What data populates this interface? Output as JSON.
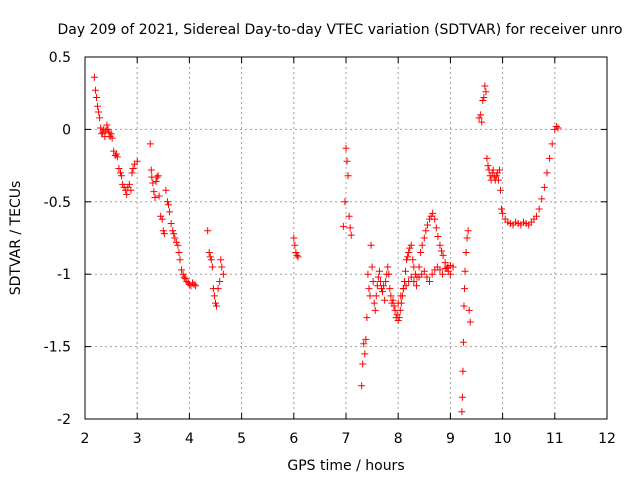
{
  "chart_data": {
    "type": "scatter",
    "title": "Day 209 of 2021, Sidereal Day-to-day VTEC variation (SDTVAR) for receiver unro",
    "xlabel": "GPS time / hours",
    "ylabel": "SDTVAR / TECUs",
    "xlim": [
      2,
      12
    ],
    "ylim": [
      -2,
      0.5
    ],
    "xticks": [
      2,
      3,
      4,
      5,
      6,
      7,
      8,
      9,
      10,
      11,
      12
    ],
    "yticks": [
      0.5,
      0,
      -0.5,
      -1,
      -1.5,
      -2
    ],
    "xtick_labels": [
      "2",
      "3",
      "4",
      "5",
      "6",
      "7",
      "8",
      "9",
      "10",
      "11",
      "12"
    ],
    "ytick_labels": [
      "0.5",
      "0",
      "-0.5",
      "-1",
      "-1.5",
      "-2"
    ],
    "grid": true,
    "marker": "plus",
    "color": "#ff0000",
    "series": [
      {
        "name": "SDTVAR",
        "x": [
          2.18,
          2.2,
          2.22,
          2.24,
          2.26,
          2.28,
          2.3,
          2.32,
          2.34,
          2.36,
          2.38,
          2.4,
          2.42,
          2.44,
          2.46,
          2.48,
          2.5,
          2.52,
          2.55,
          2.58,
          2.6,
          2.62,
          2.65,
          2.68,
          2.7,
          2.72,
          2.75,
          2.78,
          2.8,
          2.82,
          2.85,
          2.88,
          2.9,
          2.92,
          2.95,
          3.0,
          3.25,
          3.27,
          3.28,
          3.3,
          3.32,
          3.34,
          3.36,
          3.38,
          3.4,
          3.42,
          3.45,
          3.48,
          3.5,
          3.52,
          3.55,
          3.58,
          3.6,
          3.62,
          3.65,
          3.68,
          3.7,
          3.72,
          3.75,
          3.78,
          3.8,
          3.82,
          3.85,
          3.88,
          3.9,
          3.92,
          3.95,
          3.98,
          4.0,
          4.03,
          4.06,
          4.09,
          4.12,
          4.35,
          4.38,
          4.4,
          4.42,
          4.44,
          4.46,
          4.48,
          4.5,
          4.52,
          4.55,
          4.58,
          4.6,
          4.62,
          4.65,
          6.0,
          6.02,
          6.04,
          6.06,
          6.08,
          6.95,
          6.98,
          7.0,
          7.02,
          7.04,
          7.06,
          7.08,
          7.1,
          7.3,
          7.32,
          7.34,
          7.36,
          7.38,
          7.4,
          7.42,
          7.44,
          7.46,
          7.48,
          7.5,
          7.52,
          7.54,
          7.56,
          7.58,
          7.6,
          7.62,
          7.64,
          7.66,
          7.68,
          7.7,
          7.72,
          7.74,
          7.76,
          7.78,
          7.8,
          7.82,
          7.84,
          7.86,
          7.88,
          7.9,
          7.92,
          7.94,
          7.96,
          7.98,
          8.0,
          8.02,
          8.04,
          8.06,
          8.08,
          8.1,
          8.12,
          8.14,
          8.16,
          8.18,
          8.2,
          8.22,
          8.25,
          8.28,
          8.3,
          8.33,
          8.36,
          8.4,
          8.43,
          8.46,
          8.5,
          8.53,
          8.56,
          8.6,
          8.63,
          8.66,
          8.7,
          8.73,
          8.76,
          8.8,
          8.83,
          8.86,
          8.9,
          8.93,
          8.96,
          9.0,
          8.0,
          8.05,
          8.1,
          8.15,
          8.2,
          8.25,
          8.3,
          8.35,
          8.4,
          8.45,
          8.5,
          8.55,
          8.6,
          8.65,
          8.7,
          8.75,
          8.8,
          8.85,
          8.9,
          8.95,
          9.0,
          9.05,
          9.22,
          9.23,
          9.24,
          9.25,
          9.26,
          9.27,
          9.28,
          9.3,
          9.32,
          9.34,
          9.36,
          9.38,
          9.55,
          9.58,
          9.6,
          9.62,
          9.64,
          9.66,
          9.68,
          9.7,
          9.72,
          9.74,
          9.76,
          9.78,
          9.8,
          9.82,
          9.84,
          9.86,
          9.88,
          9.9,
          9.92,
          9.94,
          9.96,
          9.98,
          10.0,
          10.05,
          10.1,
          10.15,
          10.2,
          10.25,
          10.3,
          10.35,
          10.4,
          10.45,
          10.5,
          10.55,
          10.6,
          10.65,
          10.7,
          10.75,
          10.8,
          10.85,
          10.9,
          10.95,
          11.0,
          11.03,
          11.06
        ],
        "y": [
          0.36,
          0.27,
          0.22,
          0.16,
          0.12,
          0.08,
          0.01,
          -0.03,
          -0.02,
          0.0,
          -0.05,
          -0.01,
          0.03,
          0.0,
          -0.02,
          -0.05,
          -0.03,
          -0.06,
          -0.15,
          -0.18,
          -0.17,
          -0.19,
          -0.27,
          -0.3,
          -0.32,
          -0.38,
          -0.4,
          -0.42,
          -0.45,
          -0.4,
          -0.38,
          -0.42,
          -0.3,
          -0.27,
          -0.24,
          -0.22,
          -0.1,
          -0.28,
          -0.33,
          -0.37,
          -0.43,
          -0.47,
          -0.36,
          -0.33,
          -0.32,
          -0.46,
          -0.6,
          -0.62,
          -0.7,
          -0.72,
          -0.42,
          -0.5,
          -0.52,
          -0.57,
          -0.65,
          -0.7,
          -0.72,
          -0.75,
          -0.78,
          -0.8,
          -0.85,
          -0.9,
          -0.97,
          -1.0,
          -1.02,
          -1.03,
          -1.05,
          -1.06,
          -1.07,
          -1.08,
          -1.06,
          -1.07,
          -1.08,
          -0.7,
          -0.85,
          -0.88,
          -0.9,
          -0.95,
          -1.1,
          -1.15,
          -1.2,
          -1.22,
          -1.1,
          -1.05,
          -0.9,
          -0.95,
          -1.0,
          -0.75,
          -0.8,
          -0.85,
          -0.87,
          -0.88,
          -0.67,
          -0.5,
          -0.13,
          -0.22,
          -0.32,
          -0.6,
          -0.68,
          -0.73,
          -1.77,
          -1.62,
          -1.48,
          -1.55,
          -1.45,
          -1.3,
          -1.0,
          -1.1,
          -1.15,
          -0.8,
          -0.95,
          -1.05,
          -1.2,
          -1.25,
          -1.15,
          -1.08,
          -1.02,
          -0.98,
          -1.05,
          -1.1,
          -1.12,
          -1.08,
          -1.18,
          -1.05,
          -1.0,
          -0.95,
          -1.0,
          -1.1,
          -1.15,
          -1.2,
          -1.18,
          -1.22,
          -1.25,
          -1.3,
          -1.28,
          -1.32,
          -1.3,
          -1.25,
          -1.2,
          -1.15,
          -1.1,
          -1.05,
          -0.98,
          -0.9,
          -0.88,
          -0.85,
          -0.82,
          -0.8,
          -0.9,
          -0.95,
          -1.0,
          -1.02,
          -0.95,
          -0.85,
          -0.8,
          -0.75,
          -0.7,
          -0.66,
          -0.62,
          -0.6,
          -0.58,
          -0.62,
          -0.68,
          -0.74,
          -0.8,
          -0.84,
          -0.87,
          -0.92,
          -0.96,
          -0.98,
          -1.0,
          -1.2,
          -1.15,
          -1.1,
          -1.08,
          -1.05,
          -1.02,
          -1.05,
          -1.08,
          -1.02,
          -1.0,
          -0.98,
          -1.02,
          -1.05,
          -1.0,
          -0.97,
          -0.95,
          -0.97,
          -1.0,
          -0.96,
          -0.95,
          -0.94,
          -0.95,
          -1.95,
          -1.85,
          -1.67,
          -1.47,
          -1.22,
          -1.1,
          -0.98,
          -0.85,
          -0.75,
          -0.7,
          -1.25,
          -1.33,
          0.08,
          0.1,
          0.05,
          0.2,
          0.22,
          0.3,
          0.26,
          -0.2,
          -0.25,
          -0.28,
          -0.32,
          -0.35,
          -0.3,
          -0.28,
          -0.33,
          -0.35,
          -0.32,
          -0.3,
          -0.35,
          -0.28,
          -0.42,
          -0.55,
          -0.58,
          -0.62,
          -0.64,
          -0.65,
          -0.66,
          -0.64,
          -0.65,
          -0.66,
          -0.64,
          -0.65,
          -0.66,
          -0.64,
          -0.62,
          -0.6,
          -0.55,
          -0.48,
          -0.4,
          -0.3,
          -0.2,
          -0.1,
          0.0,
          0.02,
          0.01
        ]
      }
    ]
  }
}
